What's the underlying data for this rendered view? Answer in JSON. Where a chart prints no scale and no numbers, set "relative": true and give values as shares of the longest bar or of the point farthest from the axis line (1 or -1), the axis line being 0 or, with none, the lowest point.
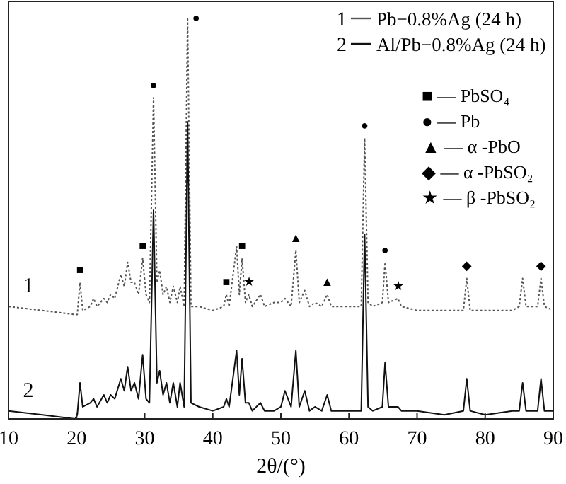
{
  "chart_data": {
    "type": "line",
    "relative": true,
    "xlabel": "2θ/(°)",
    "xlim": [
      10,
      90
    ],
    "xticks": [
      10,
      20,
      30,
      40,
      50,
      60,
      70,
      80,
      90
    ],
    "tick_labels": "x",
    "grid": false,
    "legend": "top right",
    "marker": "none",
    "series": [
      {
        "name": "Pb−0.8%Ag (24 h)",
        "color": "#555555",
        "line_style": "dotted",
        "x": [
          10,
          15,
          19.8,
          20.1,
          20.5,
          20.9,
          22,
          22.5,
          23,
          24,
          24.5,
          25,
          25.6,
          26.5,
          27,
          27.5,
          28,
          28.5,
          29.1,
          29.7,
          30.2,
          30.7,
          31.3,
          31.8,
          32.2,
          32.7,
          33.2,
          33.7,
          34.2,
          34.8,
          35.2,
          35.8,
          36.3,
          36.8,
          38,
          40,
          41.6,
          42,
          42.4,
          43.5,
          43.9,
          44.3,
          44.8,
          45.3,
          45.8,
          47,
          47.6,
          49,
          50,
          50.6,
          51.5,
          52.2,
          52.7,
          53.5,
          54.2,
          55,
          56,
          56.8,
          57.4,
          59,
          61.8,
          62.3,
          62.8,
          63.5,
          64.9,
          65.3,
          65.8,
          67.2,
          67.7,
          70,
          74,
          76.8,
          77.3,
          77.8,
          80,
          84,
          85,
          85.5,
          86,
          87.7,
          88.2,
          88.7,
          90
        ],
        "values": [
          0.28,
          0.27,
          0.26,
          0.26,
          0.34,
          0.27,
          0.28,
          0.3,
          0.28,
          0.3,
          0.29,
          0.31,
          0.3,
          0.36,
          0.33,
          0.39,
          0.34,
          0.34,
          0.31,
          0.4,
          0.31,
          0.29,
          0.8,
          0.34,
          0.37,
          0.31,
          0.33,
          0.29,
          0.33,
          0.29,
          0.33,
          0.28,
          1,
          0.28,
          0.28,
          0.27,
          0.28,
          0.31,
          0.28,
          0.43,
          0.31,
          0.4,
          0.29,
          0.31,
          0.28,
          0.31,
          0.28,
          0.29,
          0.29,
          0.3,
          0.28,
          0.42,
          0.29,
          0.32,
          0.28,
          0.29,
          0.28,
          0.31,
          0.28,
          0.28,
          0.28,
          0.7,
          0.29,
          0.28,
          0.29,
          0.39,
          0.29,
          0.3,
          0.28,
          0.27,
          0.27,
          0.27,
          0.35,
          0.27,
          0.27,
          0.27,
          0.28,
          0.35,
          0.28,
          0.28,
          0.35,
          0.28,
          0.27
        ]
      },
      {
        "name": "Al/Pb−0.8%Ag (24 h)",
        "color": "#111111",
        "line_style": "solid",
        "x": [
          10,
          15,
          19.8,
          20.1,
          20.5,
          20.9,
          22,
          22.5,
          23,
          24,
          24.5,
          25,
          25.6,
          26.5,
          27,
          27.5,
          28,
          28.5,
          29.1,
          29.7,
          30.2,
          30.7,
          31.3,
          31.8,
          32.2,
          32.7,
          33.2,
          33.7,
          34.2,
          34.8,
          35.2,
          35.8,
          36.3,
          36.8,
          38,
          40,
          41.6,
          42,
          42.4,
          43.5,
          43.9,
          44.3,
          44.8,
          45.3,
          45.8,
          47,
          47.6,
          49,
          50,
          50.6,
          51.5,
          52.2,
          52.7,
          53.5,
          54.2,
          55,
          56,
          56.8,
          57.4,
          59,
          61.8,
          62.3,
          62.8,
          63.5,
          64.9,
          65.3,
          65.8,
          67.2,
          67.7,
          70,
          74,
          76.8,
          77.3,
          77.8,
          80,
          84,
          85,
          85.5,
          86,
          87.7,
          88.2,
          88.7,
          90
        ],
        "values": [
          0.02,
          0.01,
          0,
          0.01,
          0.09,
          0.03,
          0.04,
          0.05,
          0.03,
          0.06,
          0.04,
          0.06,
          0.05,
          0.1,
          0.07,
          0.13,
          0.07,
          0.09,
          0.05,
          0.16,
          0.05,
          0.04,
          0.52,
          0.09,
          0.12,
          0.06,
          0.09,
          0.04,
          0.09,
          0.03,
          0.09,
          0.03,
          0.74,
          0.04,
          0.03,
          0.02,
          0.03,
          0.05,
          0.03,
          0.17,
          0.06,
          0.15,
          0.04,
          0.04,
          0.02,
          0.04,
          0.02,
          0.02,
          0.03,
          0.07,
          0.03,
          0.17,
          0.03,
          0.07,
          0.02,
          0.03,
          0.02,
          0.06,
          0.02,
          0.02,
          0.02,
          0.46,
          0.03,
          0.02,
          0.03,
          0.14,
          0.03,
          0.03,
          0.02,
          0.02,
          0.01,
          0.02,
          0.1,
          0.02,
          0.01,
          0.02,
          0.02,
          0.09,
          0.02,
          0.02,
          0.1,
          0.02,
          0.02
        ]
      }
    ],
    "annotations": [
      {
        "text": "1",
        "x": 10,
        "y": 0.28
      },
      {
        "text": "2",
        "x": 10,
        "y": 0.02
      },
      {
        "text": "■",
        "x": 20.5,
        "y": 0.34
      },
      {
        "text": "■",
        "x": 29.7,
        "y": 0.4
      },
      {
        "text": "●",
        "x": 31.3,
        "y": 0.8
      },
      {
        "text": "●",
        "x": 36.3,
        "y": 1
      },
      {
        "text": "■",
        "x": 42,
        "y": 0.31
      },
      {
        "text": "■",
        "x": 44.3,
        "y": 0.4
      },
      {
        "text": "★",
        "x": 45.3,
        "y": 0.31
      },
      {
        "text": "▲",
        "x": 52.2,
        "y": 0.42
      },
      {
        "text": "▲",
        "x": 56.8,
        "y": 0.31
      },
      {
        "text": "●",
        "x": 62.3,
        "y": 0.7
      },
      {
        "text": "●",
        "x": 65.3,
        "y": 0.39
      },
      {
        "text": "★",
        "x": 67.2,
        "y": 0.3
      },
      {
        "text": "◆",
        "x": 77.3,
        "y": 0.35
      },
      {
        "text": "◆",
        "x": 88.2,
        "y": 0.35
      },
      "■ — PbSO₄",
      "● — Pb",
      "▲ — α -PbO",
      "◆ — α -PbSO₂",
      "★ — β -PbSO₂"
    ]
  }
}
